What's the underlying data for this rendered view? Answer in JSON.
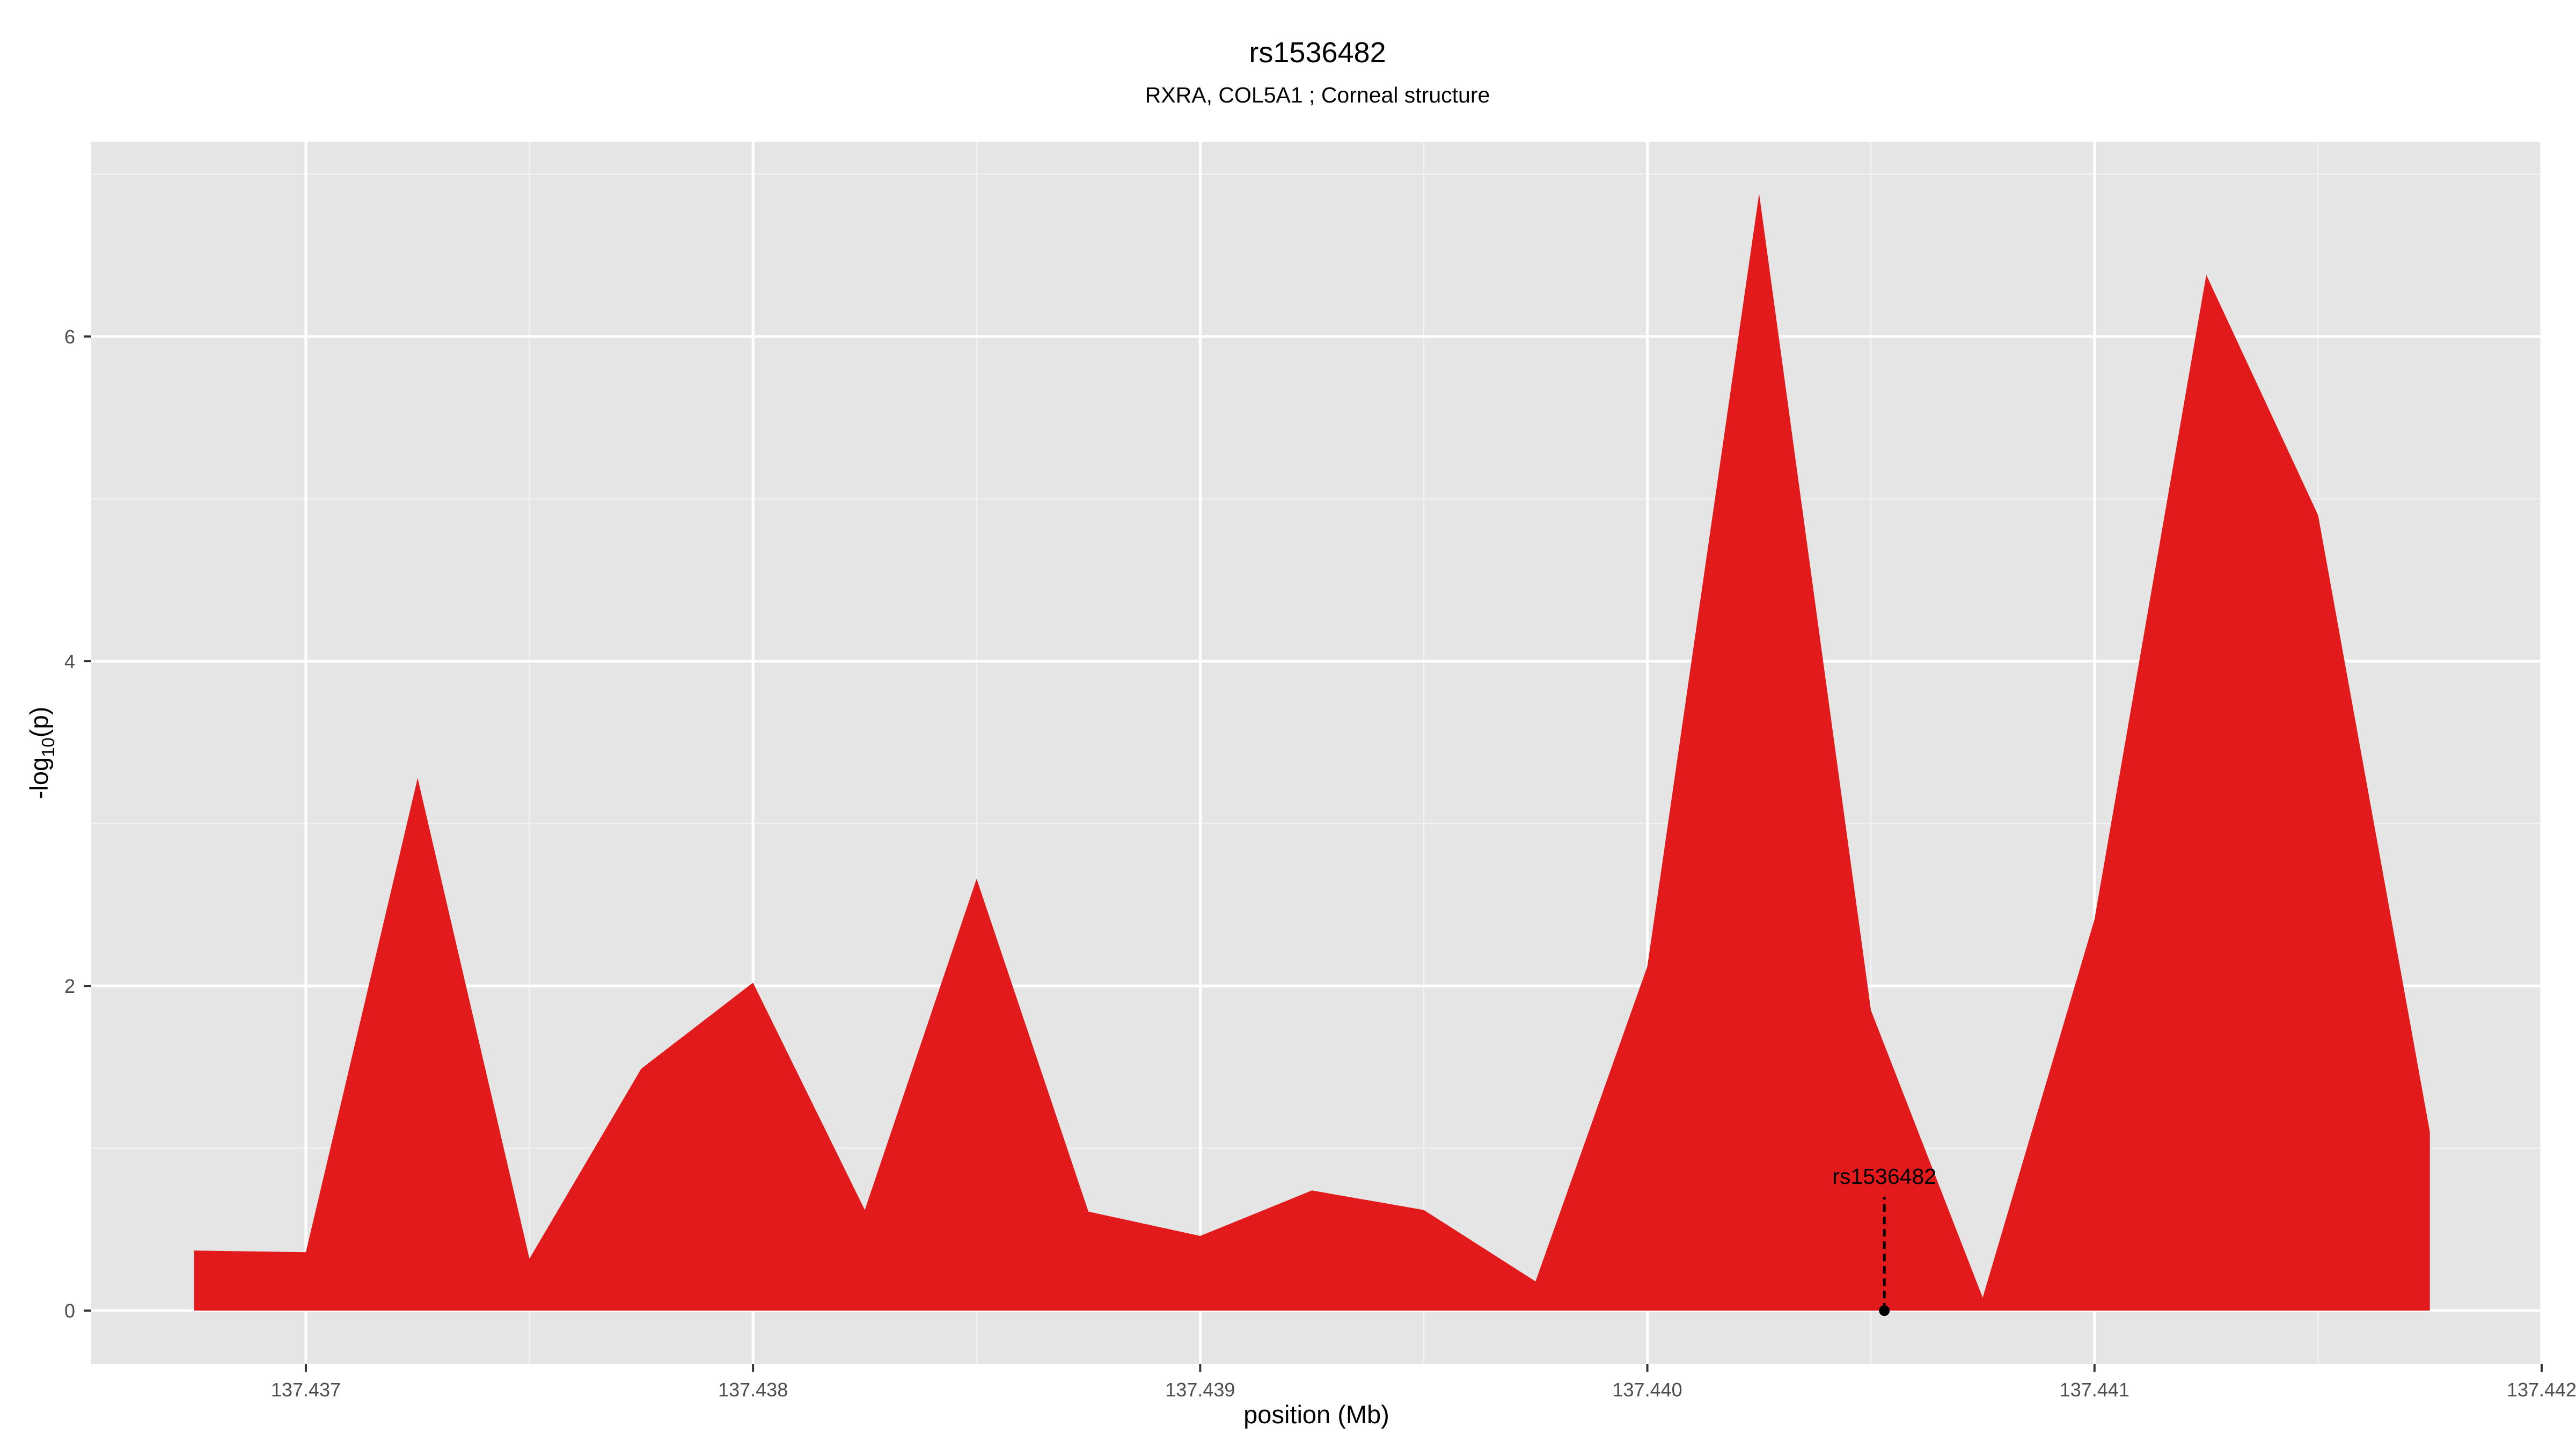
{
  "chart_data": {
    "type": "area",
    "title": "rs1536482",
    "subtitle": "RXRA, COL5A1 ; Corneal structure",
    "xlabel": "position (Mb)",
    "ylabel": "-log10(p)",
    "ylabel_parts": {
      "prefix": "-log",
      "subscript": "10",
      "suffix": "(p)"
    },
    "xlim": [
      137.43652,
      137.442
    ],
    "ylim": [
      -0.33,
      7.2
    ],
    "grid": true,
    "legend": "none",
    "fill_color": "#e31a1c",
    "panel_color": "#e5e5e5",
    "x_ticks": [
      137.437,
      137.438,
      137.439,
      137.44,
      137.441,
      137.442
    ],
    "x_tick_labels": [
      "137.437",
      "137.438",
      "137.439",
      "137.440",
      "137.441",
      "137.442"
    ],
    "y_ticks": [
      0,
      2,
      4,
      6
    ],
    "y_tick_labels": [
      "0",
      "2",
      "4",
      "6"
    ],
    "series": [
      {
        "x": [
          137.43675,
          137.437,
          137.43725,
          137.4375,
          137.43775,
          137.438,
          137.43825,
          137.4385,
          137.43875,
          137.439,
          137.43925,
          137.4395,
          137.43975,
          137.44,
          137.44025,
          137.4405,
          137.44075,
          137.441,
          137.44125,
          137.4415,
          137.44175
        ],
        "y": [
          0.37,
          0.36,
          3.28,
          0.32,
          1.49,
          2.02,
          0.62,
          2.66,
          0.61,
          0.46,
          0.74,
          0.62,
          0.18,
          2.12,
          6.88,
          1.85,
          0.08,
          2.41,
          6.38,
          4.9,
          1.1
        ]
      }
    ],
    "annotation": {
      "label": "rs1536482",
      "x": 137.44053,
      "y": 0,
      "label_y": 0.83
    }
  }
}
